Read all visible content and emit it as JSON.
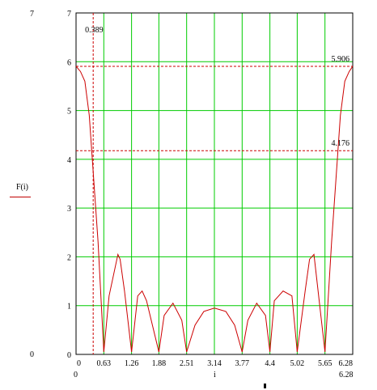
{
  "chart_data": {
    "type": "line",
    "ylabel": "F(i)",
    "xlabel": "i",
    "xlim": [
      0,
      6.28
    ],
    "ylim": [
      0,
      7
    ],
    "x_range_labels": {
      "min": "0",
      "max": "6.28"
    },
    "y_range_labels": {
      "min": "0",
      "max": "7"
    },
    "x_ticks": [
      "0",
      "0.63",
      "1.26",
      "1.88",
      "2.51",
      "3.14",
      "3.77",
      "4.4",
      "5.02",
      "5.65",
      "6.28"
    ],
    "y_ticks": [
      "0",
      "1",
      "2",
      "3",
      "4",
      "5",
      "6",
      "7"
    ],
    "grid": true,
    "grid_color": "#00cc00",
    "series": [
      {
        "color": "#cc0000",
        "x": [
          0,
          0.1,
          0.2,
          0.3,
          0.4,
          0.5,
          0.63,
          0.75,
          0.95,
          1.0,
          1.1,
          1.26,
          1.4,
          1.5,
          1.6,
          1.88,
          2.0,
          2.2,
          2.4,
          2.51,
          2.7,
          2.9,
          3.14,
          3.4,
          3.6,
          3.77,
          3.9,
          4.1,
          4.3,
          4.4,
          4.5,
          4.7,
          4.9,
          5.02,
          5.2,
          5.3,
          5.4,
          5.65,
          5.8,
          5.9,
          6.0,
          6.1,
          6.2,
          6.28
        ],
        "y": [
          5.906,
          5.8,
          5.6,
          4.9,
          3.6,
          2.3,
          0.05,
          1.2,
          2.05,
          1.95,
          1.3,
          0.05,
          1.2,
          1.3,
          1.1,
          0.05,
          0.8,
          1.05,
          0.7,
          0.05,
          0.6,
          0.88,
          0.95,
          0.88,
          0.6,
          0.05,
          0.7,
          1.05,
          0.8,
          0.05,
          1.1,
          1.3,
          1.2,
          0.05,
          1.3,
          1.95,
          2.05,
          0.05,
          2.3,
          3.6,
          4.9,
          5.6,
          5.8,
          5.906
        ]
      }
    ],
    "annotations": {
      "vertical_line": {
        "x": 0.389,
        "label": "0.389"
      },
      "horizontal_lines": [
        {
          "y": 5.906,
          "label": "5.906"
        },
        {
          "y": 4.176,
          "label": "4.176"
        }
      ]
    }
  }
}
